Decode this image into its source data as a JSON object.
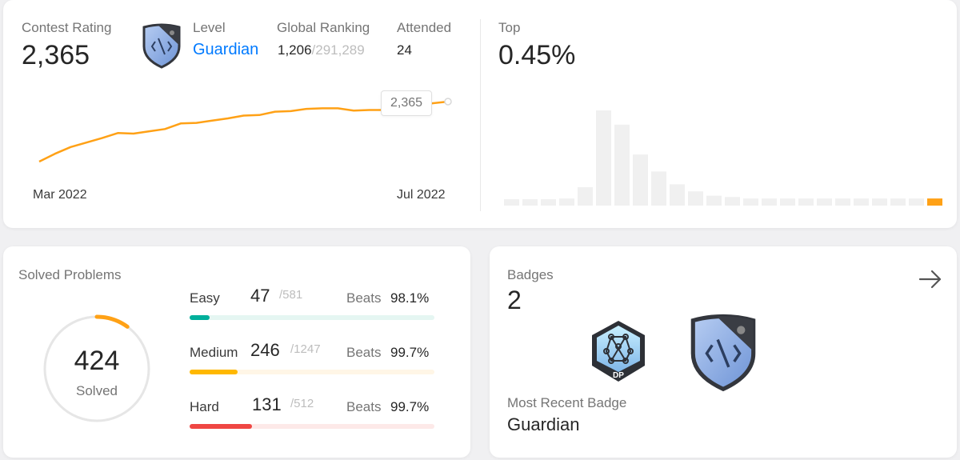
{
  "contest": {
    "rating_label": "Contest Rating",
    "rating_value": "2,365",
    "level_label": "Level",
    "level_value": "Guardian",
    "global_label": "Global Ranking",
    "global_rank": "1,206",
    "global_total": "/291,289",
    "attended_label": "Attended",
    "attended_value": "24",
    "top_label": "Top",
    "top_value": "0.45%",
    "tooltip_value": "2,365",
    "x_start": "Mar 2022",
    "x_end": "Jul 2022",
    "line_color": "#ffa116",
    "rating_history": [
      1830,
      1900,
      1960,
      2000,
      2040,
      2085,
      2080,
      2100,
      2120,
      2170,
      2175,
      2195,
      2215,
      2240,
      2245,
      2275,
      2280,
      2300,
      2305,
      2305,
      2285,
      2290,
      2290,
      2285,
      2300,
      2350,
      2365
    ]
  },
  "histogram": {
    "bar_color": "#f0f0f0",
    "highlight_color": "#ffa116",
    "values": [
      4,
      4,
      4,
      5,
      13,
      67,
      57,
      36,
      24,
      15,
      10,
      7,
      6,
      5,
      5,
      5,
      5,
      5,
      5,
      5,
      5,
      5,
      5,
      5
    ],
    "highlight_index": 23
  },
  "solved": {
    "title": "Solved Problems",
    "count": "424",
    "count_label": "Solved",
    "progress_fraction": 0.1,
    "ring_color": "#ffa116",
    "rows": [
      {
        "name": "Easy",
        "solved": "47",
        "total": "/581",
        "beats_label": "Beats",
        "beats": "98.1%",
        "fraction": 0.081,
        "color": "#00af9b",
        "track": "#e5f6f2"
      },
      {
        "name": "Medium",
        "solved": "246",
        "total": "/1247",
        "beats_label": "Beats",
        "beats": "99.7%",
        "fraction": 0.197,
        "color": "#ffb800",
        "track": "#fff6e6"
      },
      {
        "name": "Hard",
        "solved": "131",
        "total": "/512",
        "beats_label": "Beats",
        "beats": "99.7%",
        "fraction": 0.256,
        "color": "#ef4743",
        "track": "#fde9e8"
      }
    ]
  },
  "badges": {
    "title": "Badges",
    "count": "2",
    "dp_badge_text": "DP",
    "recent_label": "Most Recent Badge",
    "recent_value": "Guardian"
  }
}
